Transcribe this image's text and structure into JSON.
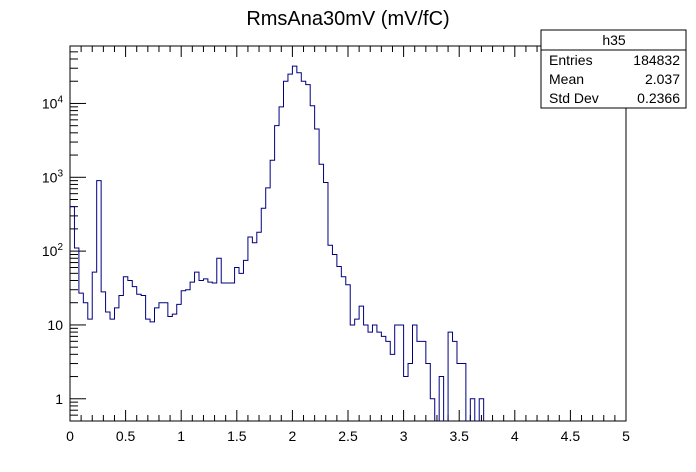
{
  "chart_data": {
    "type": "histogram",
    "title": "RmsAna30mV (mV/fC)",
    "xlabel": "",
    "ylabel": "",
    "log_y": true,
    "grid": false,
    "xlim": [
      0,
      5
    ],
    "ylim": [
      0.5,
      60000
    ],
    "bin_width": 0.04,
    "x_ticks": [
      "0",
      "0.5",
      "1",
      "1.5",
      "2",
      "2.5",
      "3",
      "3.5",
      "4",
      "4.5",
      "5"
    ],
    "y_ticks": [
      {
        "base": "1",
        "exp": ""
      },
      {
        "base": "10",
        "exp": ""
      },
      {
        "base": "10",
        "exp": "2"
      },
      {
        "base": "10",
        "exp": "3"
      },
      {
        "base": "10",
        "exp": "4"
      }
    ],
    "line_color": "#000080",
    "values": [
      400,
      110,
      27,
      20,
      12,
      52,
      900,
      28,
      15,
      12,
      17,
      25,
      45,
      40,
      33,
      26,
      25,
      12,
      11,
      17,
      20,
      20,
      13,
      14,
      19,
      29,
      30,
      38,
      52,
      40,
      42,
      38,
      37,
      80,
      37,
      37,
      37,
      60,
      50,
      75,
      155,
      130,
      180,
      380,
      720,
      1700,
      5000,
      9000,
      20000,
      25000,
      32000,
      26000,
      20000,
      18000,
      9300,
      4500,
      1500,
      850,
      120,
      90,
      62,
      45,
      35,
      10,
      12,
      18,
      10,
      8,
      10,
      8,
      7,
      6,
      4,
      10,
      10,
      2,
      3,
      10,
      6,
      6,
      3,
      1,
      0,
      2,
      0,
      8,
      6,
      3,
      3,
      0,
      1,
      0,
      1,
      0,
      0,
      0,
      0,
      0
    ],
    "stats_box": {
      "title": "h35",
      "rows": [
        {
          "label": "Entries",
          "value": "184832"
        },
        {
          "label": "Mean",
          "value": "2.037"
        },
        {
          "label": "Std Dev",
          "value": "0.2366"
        }
      ]
    }
  }
}
